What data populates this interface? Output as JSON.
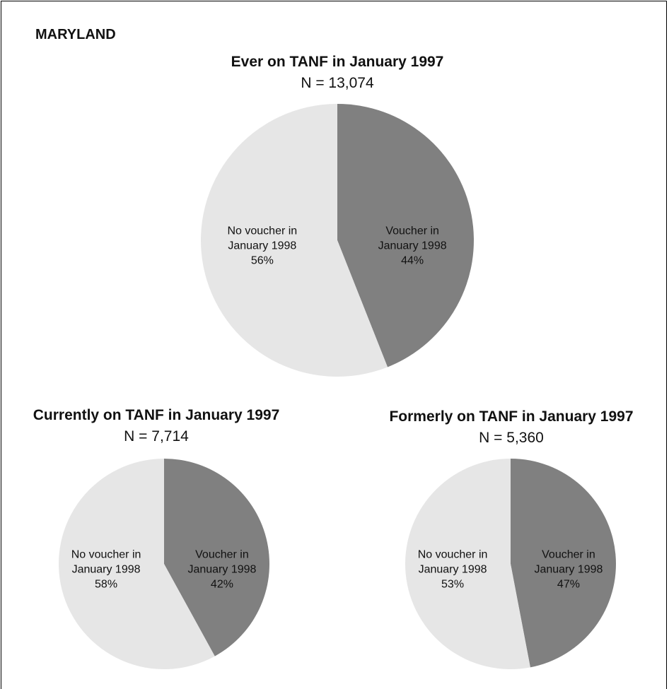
{
  "header": {
    "title": "MARYLAND"
  },
  "chart_data": [
    {
      "type": "pie",
      "title": "Ever on TANF in January 1997",
      "subtitle": "N = 13,074",
      "categories": [
        "Voucher in January 1998",
        "No voucher in January 1998"
      ],
      "values": [
        44,
        56
      ],
      "value_labels": [
        "44%",
        "56%"
      ],
      "colors": [
        "#808080",
        "#e6e6e6"
      ]
    },
    {
      "type": "pie",
      "title": "Currently on TANF in January 1997",
      "subtitle": "N = 7,714",
      "categories": [
        "Voucher in January 1998",
        "No voucher in January 1998"
      ],
      "values": [
        42,
        58
      ],
      "value_labels": [
        "42%",
        "58%"
      ],
      "colors": [
        "#808080",
        "#e6e6e6"
      ]
    },
    {
      "type": "pie",
      "title": "Formerly on TANF in January 1997",
      "subtitle": "N = 5,360",
      "categories": [
        "Voucher in January 1998",
        "No voucher in January 1998"
      ],
      "values": [
        47,
        53
      ],
      "value_labels": [
        "47%",
        "53%"
      ],
      "colors": [
        "#808080",
        "#e6e6e6"
      ]
    }
  ]
}
